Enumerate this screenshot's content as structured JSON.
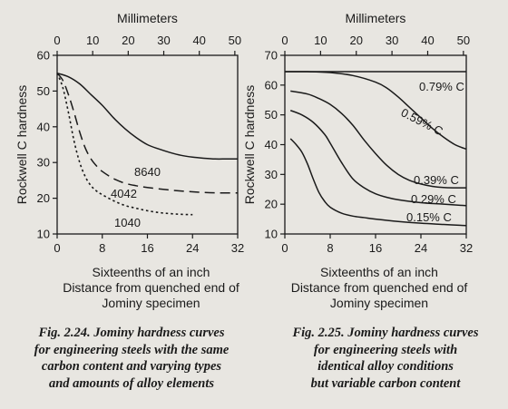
{
  "chart_data": [
    {
      "type": "line",
      "top_axis_label": "Millimeters",
      "top_ticks": [
        0,
        10,
        20,
        30,
        40,
        50
      ],
      "ylabel": "Rockwell C hardness",
      "yticks": [
        10,
        20,
        30,
        40,
        50,
        60
      ],
      "ylim": [
        10,
        60
      ],
      "xticks": [
        0,
        8,
        16,
        24,
        32
      ],
      "xlim": [
        0,
        32
      ],
      "xlabel_lines": [
        "Sixteenths of an inch",
        "Distance from quenched end of",
        "Jominy specimen"
      ],
      "series": [
        {
          "name": "8640",
          "style": "solid",
          "x": [
            0,
            2,
            4,
            6,
            8,
            10,
            12,
            14,
            16,
            18,
            20,
            22,
            24,
            26,
            28,
            30,
            32
          ],
          "y": [
            55,
            54,
            52,
            49,
            46,
            42.5,
            39.5,
            37,
            35,
            33.8,
            32.8,
            32,
            31.5,
            31.2,
            31,
            31,
            31
          ]
        },
        {
          "name": "4042",
          "style": "dashed",
          "x": [
            0,
            1,
            2,
            3,
            4,
            5,
            6,
            7,
            8,
            10,
            12,
            14,
            16,
            20,
            24,
            28,
            32
          ],
          "y": [
            55,
            53,
            49,
            44,
            38.5,
            34,
            31,
            29,
            27.5,
            25.5,
            24.2,
            23.5,
            23,
            22.3,
            21.8,
            21.5,
            21.5
          ]
        },
        {
          "name": "1040",
          "style": "dotted",
          "x": [
            0,
            1,
            2,
            3,
            4,
            5,
            6,
            7,
            8,
            10,
            12,
            14,
            16,
            18,
            20,
            22,
            24
          ],
          "y": [
            55,
            51,
            44,
            36,
            30,
            26,
            23.5,
            22,
            21,
            19.3,
            18,
            17.2,
            16.5,
            16,
            15.7,
            15.5,
            15.4
          ]
        }
      ],
      "caption_lines": [
        "Fig. 2.24. Jominy hardness curves",
        "for engineering steels with the same",
        "carbon content and varying types",
        "and amounts of alloy elements"
      ]
    },
    {
      "type": "line",
      "top_axis_label": "Millimeters",
      "top_ticks": [
        0,
        10,
        20,
        30,
        40,
        50
      ],
      "ylabel": "Rockwell C hardness",
      "yticks": [
        10,
        20,
        30,
        40,
        50,
        60,
        70
      ],
      "ylim": [
        10,
        70
      ],
      "xticks": [
        0,
        8,
        16,
        24,
        32
      ],
      "xlim": [
        0,
        32
      ],
      "xlabel_lines": [
        "Sixteenths of an inch",
        "Distance from quenched end of",
        "Jominy specimen"
      ],
      "series": [
        {
          "name": "0.79% C",
          "style": "solid",
          "x": [
            0,
            8,
            16,
            24,
            32
          ],
          "y": [
            64.5,
            64.5,
            64.5,
            64.5,
            64.5
          ]
        },
        {
          "name": "0.59% C",
          "style": "solid",
          "x": [
            0,
            4,
            8,
            12,
            16,
            18,
            20,
            22,
            24,
            26,
            28,
            30,
            32
          ],
          "y": [
            64.5,
            64.5,
            64.2,
            63.2,
            61,
            59,
            56,
            52.5,
            49,
            45.5,
            42.5,
            40,
            38.5
          ]
        },
        {
          "name": "0.39% C",
          "style": "solid",
          "x": [
            1,
            4,
            6,
            8,
            10,
            12,
            14,
            16,
            18,
            20,
            22,
            24,
            26,
            28,
            30,
            32
          ],
          "y": [
            58,
            57,
            55.5,
            53.5,
            50.5,
            46.5,
            41.5,
            37,
            33,
            30,
            28,
            26.8,
            26,
            25.6,
            25.5,
            25.5
          ]
        },
        {
          "name": "0.29% C",
          "style": "solid",
          "x": [
            1,
            3,
            5,
            7,
            8,
            10,
            12,
            14,
            16,
            18,
            20,
            24,
            28,
            32
          ],
          "y": [
            51.5,
            50,
            47.5,
            43.5,
            40.5,
            34,
            28.5,
            25.5,
            23.5,
            22.3,
            21.5,
            20.5,
            20,
            19.5
          ]
        },
        {
          "name": "0.15% C",
          "style": "solid",
          "x": [
            1,
            2,
            3,
            4,
            5,
            6,
            7,
            8,
            10,
            12,
            14,
            16,
            20,
            24,
            28,
            32
          ],
          "y": [
            42,
            40,
            37.5,
            33.5,
            28.5,
            24,
            21,
            19,
            17,
            16,
            15.5,
            15,
            14.2,
            13.6,
            13.2,
            12.8
          ]
        }
      ],
      "caption_lines": [
        "Fig. 2.25. Jominy hardness curves",
        "for engineering steels with",
        "identical alloy conditions",
        "but variable carbon content"
      ]
    }
  ]
}
